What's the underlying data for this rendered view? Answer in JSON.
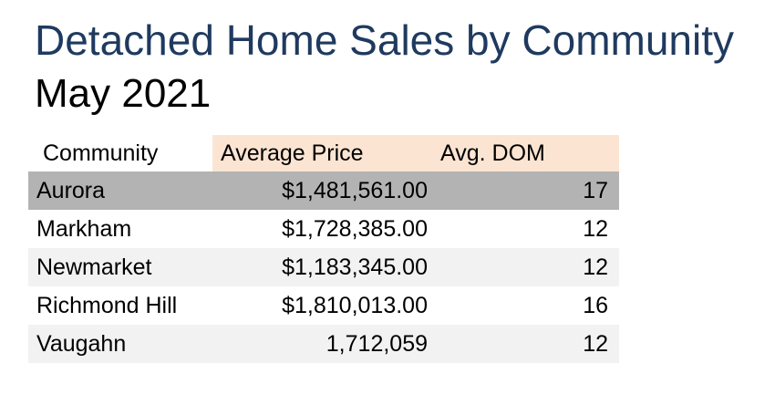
{
  "chart_data": {
    "type": "table",
    "title": "Detached Home Sales by Community",
    "subtitle": "May 2021",
    "columns": [
      "Community",
      "Average Price",
      "Avg. DOM"
    ],
    "rows": [
      [
        "Aurora",
        "$1,481,561.00",
        "17"
      ],
      [
        "Markham",
        "$1,728,385.00",
        "12"
      ],
      [
        "Newmarket",
        "$1,183,345.00",
        "12"
      ],
      [
        "Richmond Hill",
        "$1,810,013.00",
        "16"
      ],
      [
        "Vaugahn",
        "1,712,059",
        "12"
      ]
    ],
    "price_values": [
      1481561,
      1728385,
      1183345,
      1810013,
      1712059
    ],
    "dom_values": [
      17,
      12,
      12,
      16,
      12
    ],
    "highlighted_row": "Aurora",
    "layout": {
      "header_fill_columns": [
        "Average Price",
        "Avg. DOM"
      ],
      "grid": "off",
      "value_alignment": "right"
    }
  },
  "colors": {
    "title_color": "#1F3A5F",
    "subtitle_color": "#000000",
    "header_fill": "#FBE5D2",
    "selected_row_fill": "#B3B3B3",
    "alt_row_fill": "#F2F2F2"
  }
}
